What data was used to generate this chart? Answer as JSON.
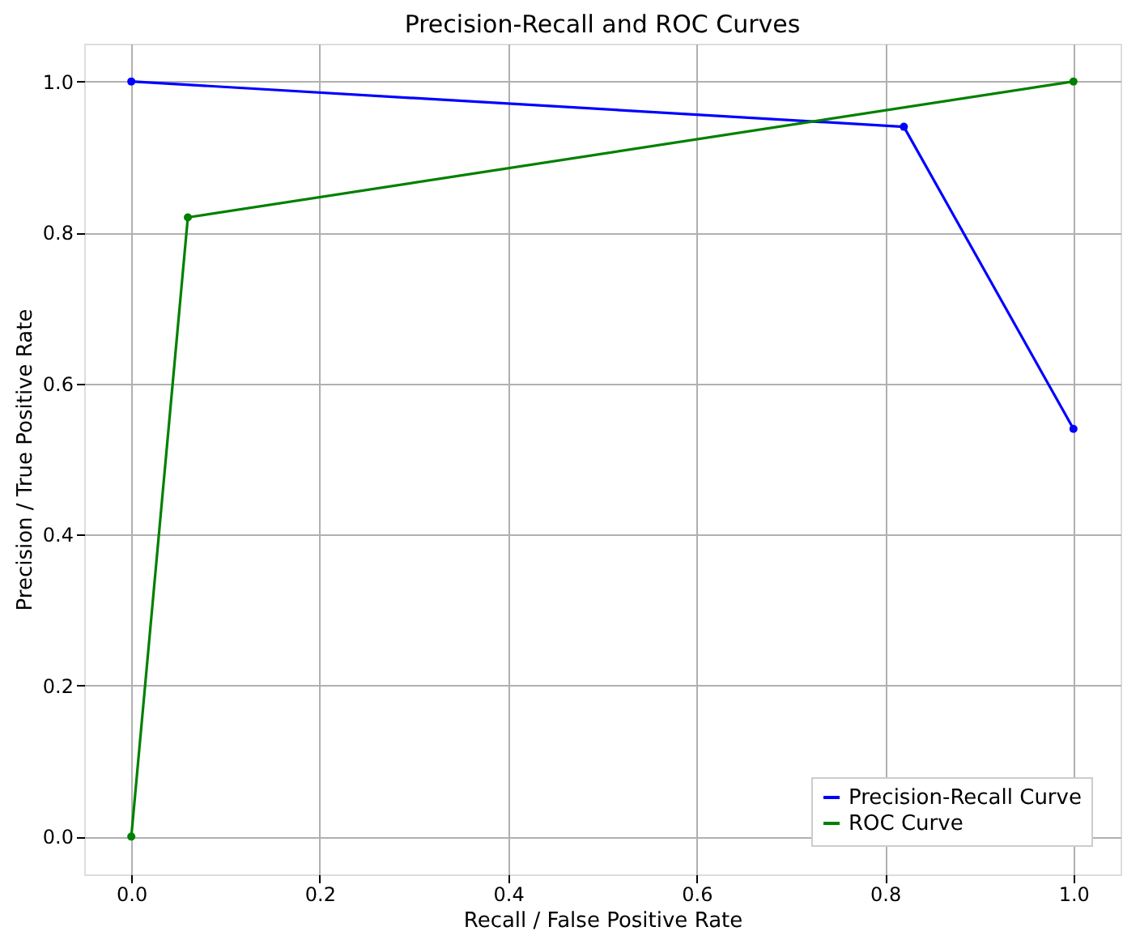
{
  "chart_data": {
    "type": "line",
    "title": "Precision-Recall and ROC Curves",
    "xlabel": "Recall / False Positive Rate",
    "ylabel": "Precision / True Positive Rate",
    "series": [
      {
        "name": "Precision-Recall Curve",
        "color": "#0000ff",
        "x": [
          0.0,
          0.82,
          1.0
        ],
        "values": [
          1.0,
          0.94,
          0.54
        ]
      },
      {
        "name": "ROC Curve",
        "color": "#008000",
        "x": [
          0.0,
          0.06,
          1.0
        ],
        "values": [
          0.0,
          0.82,
          1.0
        ]
      }
    ],
    "xlim": [
      -0.05,
      1.05
    ],
    "ylim": [
      -0.05,
      1.05
    ],
    "xticks": [
      {
        "value": 0,
        "label": "0.0"
      },
      0.2,
      0.4,
      0.6,
      0.8,
      {
        "value": 1,
        "label": "1.0"
      }
    ],
    "yticks": [
      {
        "value": 0,
        "label": "0.0"
      },
      0.2,
      0.4,
      0.6,
      0.8,
      {
        "value": 1,
        "label": "1.0"
      }
    ],
    "grid": true,
    "legend": "bottom right",
    "marker": "circle",
    "line_style": "solid"
  }
}
